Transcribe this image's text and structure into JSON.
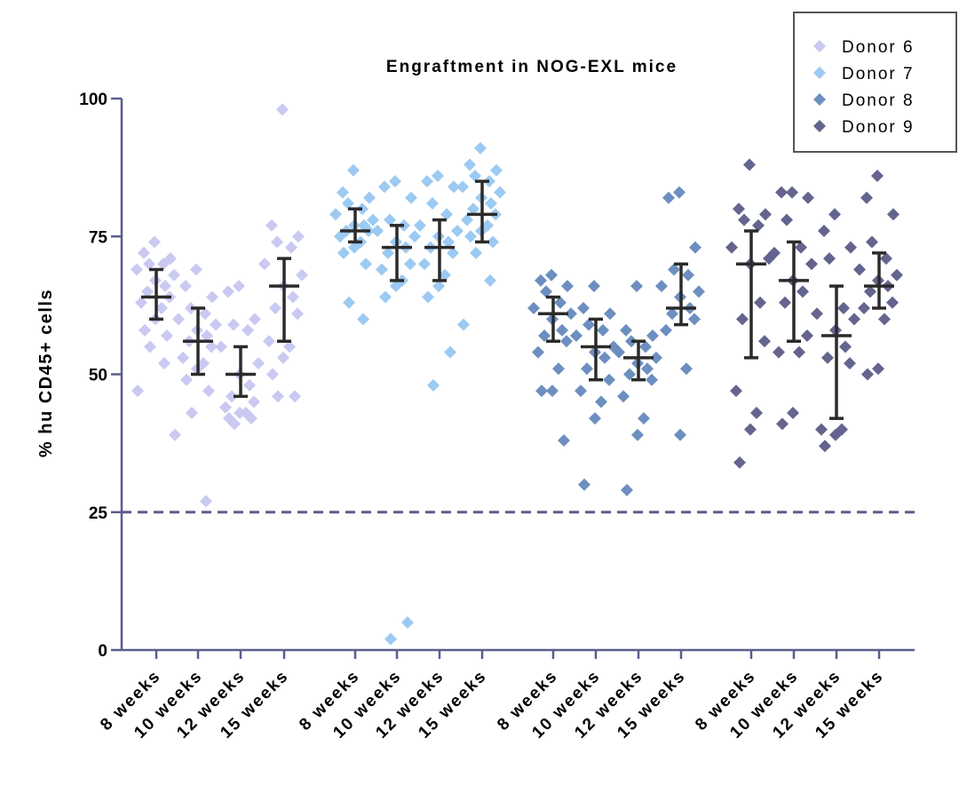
{
  "chart_data": {
    "type": "scatter",
    "subtype": "dot plot with mean and SD error bars",
    "title": "Engraftment in NOG-EXL mice",
    "ylabel": "% hu CD45+ cells",
    "xlabel": "",
    "ylim": [
      0,
      100
    ],
    "yticks": [
      0,
      25,
      50,
      75,
      100
    ],
    "reference_line": {
      "y": 25,
      "style": "dashed",
      "color": "#5c5c8e"
    },
    "legend_position": "top-right",
    "grid": false,
    "colors": {
      "axis": "#5c5c8e",
      "errorbar": "#2b2b2b",
      "text": "#000000"
    },
    "legend": [
      {
        "name": "Donor 6",
        "color": "#c9c9f2"
      },
      {
        "name": "Donor 7",
        "color": "#9ccaf2"
      },
      {
        "name": "Donor 8",
        "color": "#6d8fc0"
      },
      {
        "name": "Donor 9",
        "color": "#64648f"
      }
    ],
    "groups": [
      {
        "donor": "Donor 6",
        "categories": [
          {
            "label": "8 weeks",
            "mean": 64,
            "sd_low": 60,
            "sd_high": 69,
            "values": [
              74,
              72,
              71,
              70,
              70,
              69,
              68,
              67,
              66,
              65,
              64,
              63,
              62,
              60,
              58,
              57,
              55,
              52,
              47,
              39
            ]
          },
          {
            "label": "10 weeks",
            "mean": 56,
            "sd_low": 50,
            "sd_high": 62,
            "values": [
              69,
              66,
              64,
              62,
              61,
              60,
              59,
              58,
              57,
              56,
              55,
              53,
              52,
              51,
              49,
              47,
              43,
              27
            ]
          },
          {
            "label": "12 weeks",
            "mean": 50,
            "sd_low": 46,
            "sd_high": 55,
            "values": [
              66,
              65,
              60,
              59,
              58,
              55,
              52,
              50,
              48,
              46,
              45,
              44,
              43,
              43,
              42,
              42,
              41
            ]
          },
          {
            "label": "15 weeks",
            "mean": 66,
            "sd_low": 56,
            "sd_high": 71,
            "values": [
              98,
              77,
              75,
              74,
              73,
              70,
              68,
              66,
              64,
              62,
              61,
              56,
              55,
              53,
              50,
              46,
              46
            ]
          }
        ]
      },
      {
        "donor": "Donor 7",
        "categories": [
          {
            "label": "8 weeks",
            "mean": 76,
            "sd_low": 74,
            "sd_high": 80,
            "values": [
              87,
              83,
              82,
              81,
              80,
              79,
              78,
              77,
              77,
              76,
              76,
              75,
              74,
              73,
              72,
              70,
              63,
              60
            ]
          },
          {
            "label": "10 weeks",
            "mean": 73,
            "sd_low": 67,
            "sd_high": 77,
            "values": [
              85,
              84,
              82,
              78,
              77,
              76,
              75,
              74,
              73,
              72,
              70,
              69,
              67,
              66,
              64,
              5,
              2
            ]
          },
          {
            "label": "12 weeks",
            "mean": 73,
            "sd_low": 67,
            "sd_high": 78,
            "values": [
              86,
              85,
              84,
              81,
              79,
              77,
              76,
              75,
              74,
              73,
              72,
              70,
              68,
              66,
              64,
              54,
              48
            ]
          },
          {
            "label": "15 weeks",
            "mean": 79,
            "sd_low": 74,
            "sd_high": 85,
            "values": [
              91,
              88,
              87,
              86,
              85,
              84,
              83,
              82,
              81,
              80,
              79,
              78,
              77,
              76,
              75,
              74,
              72,
              67,
              59
            ]
          }
        ]
      },
      {
        "donor": "Donor 8",
        "categories": [
          {
            "label": "8 weeks",
            "mean": 61,
            "sd_low": 56,
            "sd_high": 64,
            "values": [
              68,
              67,
              66,
              65,
              63,
              62,
              61,
              60,
              58,
              57,
              56,
              54,
              51,
              47,
              47,
              38
            ]
          },
          {
            "label": "10 weeks",
            "mean": 55,
            "sd_low": 49,
            "sd_high": 60,
            "values": [
              66,
              62,
              61,
              59,
              58,
              57,
              55,
              54,
              53,
              51,
              49,
              47,
              45,
              42,
              30
            ]
          },
          {
            "label": "12 weeks",
            "mean": 53,
            "sd_low": 49,
            "sd_high": 56,
            "values": [
              66,
              58,
              57,
              56,
              55,
              54,
              53,
              52,
              51,
              50,
              49,
              46,
              42,
              39,
              29
            ]
          },
          {
            "label": "15 weeks",
            "mean": 62,
            "sd_low": 59,
            "sd_high": 70,
            "values": [
              83,
              82,
              73,
              69,
              68,
              66,
              65,
              64,
              62,
              61,
              60,
              58,
              51,
              39
            ]
          }
        ]
      },
      {
        "donor": "Donor 9",
        "categories": [
          {
            "label": "8 weeks",
            "mean": 70,
            "sd_low": 53,
            "sd_high": 76,
            "values": [
              88,
              80,
              79,
              78,
              77,
              73,
              71,
              70,
              63,
              60,
              56,
              47,
              43,
              40,
              34
            ]
          },
          {
            "label": "10 weeks",
            "mean": 67,
            "sd_low": 56,
            "sd_high": 74,
            "values": [
              83,
              83,
              82,
              78,
              73,
              72,
              70,
              67,
              65,
              63,
              57,
              54,
              54,
              43,
              41
            ]
          },
          {
            "label": "12 weeks",
            "mean": 57,
            "sd_low": 42,
            "sd_high": 66,
            "values": [
              79,
              76,
              73,
              71,
              62,
              61,
              60,
              58,
              55,
              53,
              52,
              40,
              40,
              39,
              37
            ]
          },
          {
            "label": "15 weeks",
            "mean": 66,
            "sd_low": 62,
            "sd_high": 72,
            "values": [
              86,
              82,
              79,
              74,
              71,
              69,
              68,
              67,
              66,
              65,
              63,
              62,
              60,
              51,
              50
            ]
          }
        ]
      }
    ]
  }
}
